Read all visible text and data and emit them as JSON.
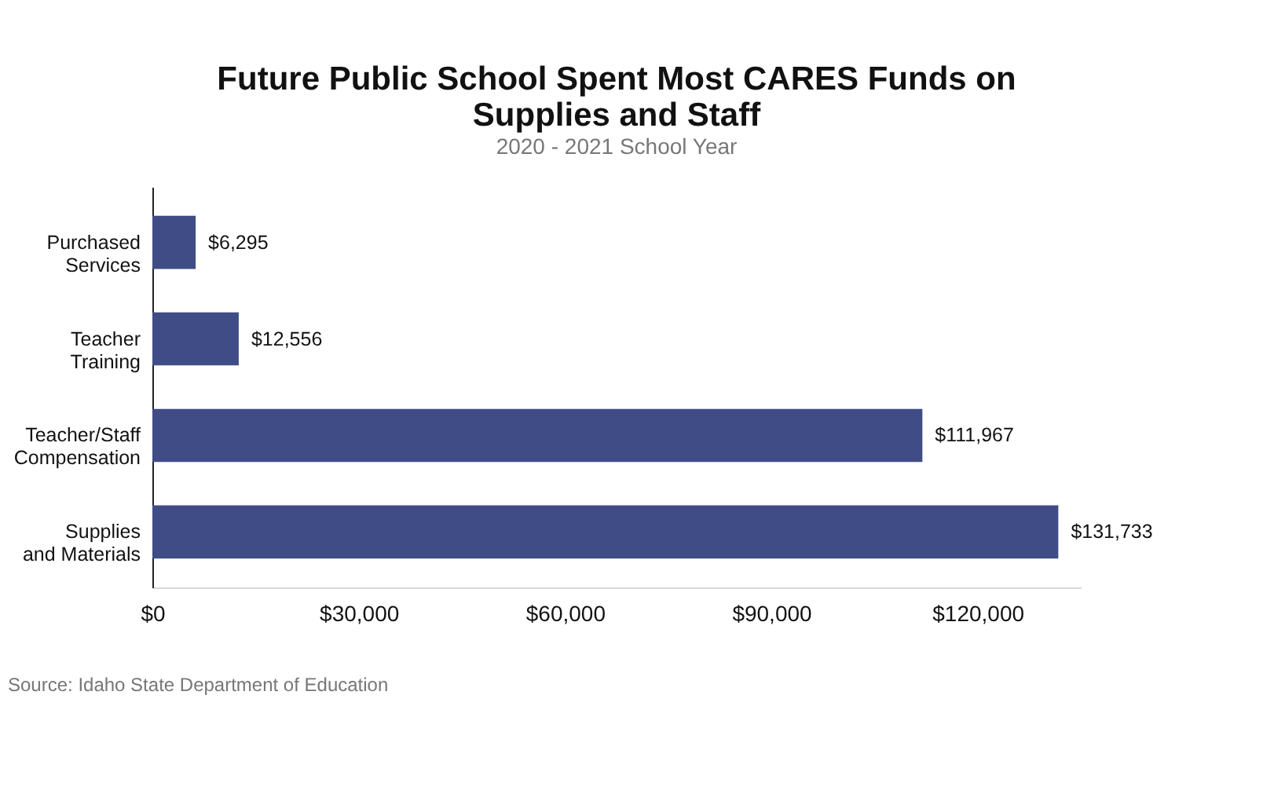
{
  "chart_data": {
    "type": "bar",
    "orientation": "horizontal",
    "title": [
      "Future Public School Spent Most CARES Funds on",
      "Supplies and Staff"
    ],
    "subtitle": "2020 - 2021 School Year",
    "categories": [
      "Purchased\nServices",
      "Teacher\nTraining",
      "Teacher/Staff\nCompensation",
      "Supplies\nand Materials"
    ],
    "values": [
      6295,
      12556,
      111967,
      131733
    ],
    "value_labels": [
      "$6,295",
      "$12,556",
      "$111,967",
      "$131,733"
    ],
    "color": "#3f4c86",
    "xlim": [
      0,
      135000
    ],
    "xticks": [
      {
        "value": 0,
        "label": "$0"
      },
      {
        "value": 30000,
        "label": "$30,000"
      },
      {
        "value": 60000,
        "label": "$60,000"
      },
      {
        "value": 90000,
        "label": "$90,000"
      },
      {
        "value": 120000,
        "label": "$120,000"
      }
    ],
    "grid": false,
    "annotations": [
      "Source: Idaho State Department of Education"
    ]
  }
}
